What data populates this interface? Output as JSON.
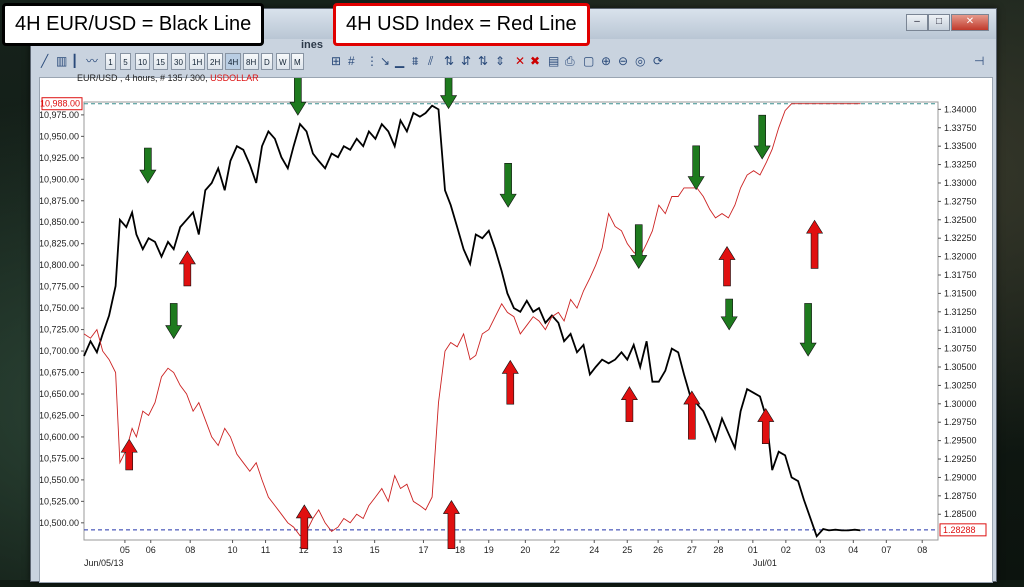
{
  "annotations": {
    "left_box": "4H EUR/USD = Black Line",
    "right_box": "4H USD Index = Red Line"
  },
  "window": {
    "title_fragment": "ines",
    "caption_symbol": "EUR/USD , 4 hours, # 135 / 300,",
    "caption_indicator": "USDOLLAR"
  },
  "toolbar": {
    "timeframes": [
      "1",
      "5",
      "10",
      "15",
      "30",
      "1H",
      "2H",
      "4H",
      "8H",
      "D",
      "W",
      "M"
    ],
    "selected_timeframe": "4H"
  },
  "chart_data": {
    "type": "line",
    "x_ticks": [
      {
        "label": "05",
        "pos": 0.057
      },
      {
        "label": "06",
        "pos": 0.093
      },
      {
        "label": "08",
        "pos": 0.148
      },
      {
        "label": "10",
        "pos": 0.207
      },
      {
        "label": "11",
        "pos": 0.253
      },
      {
        "label": "12",
        "pos": 0.306
      },
      {
        "label": "13",
        "pos": 0.353
      },
      {
        "label": "15",
        "pos": 0.405
      },
      {
        "label": "17",
        "pos": 0.473
      },
      {
        "label": "18",
        "pos": 0.524
      },
      {
        "label": "19",
        "pos": 0.564
      },
      {
        "label": "20",
        "pos": 0.615
      },
      {
        "label": "22",
        "pos": 0.656
      },
      {
        "label": "24",
        "pos": 0.711
      },
      {
        "label": "25",
        "pos": 0.757
      },
      {
        "label": "26",
        "pos": 0.8
      },
      {
        "label": "27",
        "pos": 0.847
      },
      {
        "label": "28",
        "pos": 0.884
      },
      {
        "label": "01",
        "pos": 0.932
      },
      {
        "label": "02",
        "pos": 0.978
      },
      {
        "label": "03",
        "pos": 1.026
      },
      {
        "label": "04",
        "pos": 1.072
      },
      {
        "label": "07",
        "pos": 1.118
      },
      {
        "label": "08",
        "pos": 1.168
      }
    ],
    "x_sub_labels": [
      {
        "label": "Jun/05/13",
        "pos": 0.0
      },
      {
        "label": "Jul/01",
        "pos": 0.932
      }
    ],
    "left_axis": {
      "ylim": [
        10480,
        10990
      ],
      "ticks": [
        10500,
        10525,
        10550,
        10575,
        10600,
        10625,
        10650,
        10675,
        10700,
        10725,
        10750,
        10775,
        10800,
        10825,
        10850,
        10875,
        10900,
        10925,
        10950,
        10975
      ],
      "tick_labels": [
        "10,500.00",
        "10,525.00",
        "10,550.00",
        "10,575.00",
        "10,600.00",
        "10,625.00",
        "10,650.00",
        "10,675.00",
        "10,700.00",
        "10,725.00",
        "10,750.00",
        "10,775.00",
        "10,800.00",
        "10,825.00",
        "10,850.00",
        "10,875.00",
        "10,900.00",
        "10,925.00",
        "10,950.00",
        "10,975.00"
      ],
      "marker": {
        "value": 10988,
        "label": "10,988.00"
      }
    },
    "right_axis": {
      "ylim": [
        1.2815,
        1.341
      ],
      "ticks": [
        1.285,
        1.2875,
        1.29,
        1.2925,
        1.295,
        1.2975,
        1.3,
        1.3025,
        1.305,
        1.3075,
        1.31,
        1.3125,
        1.315,
        1.3175,
        1.32,
        1.3225,
        1.325,
        1.3275,
        1.33,
        1.3325,
        1.335,
        1.3375,
        1.34
      ],
      "tick_labels": [
        "1.28500",
        "1.28750",
        "1.29000",
        "1.29250",
        "1.29500",
        "1.29750",
        "1.30000",
        "1.30250",
        "1.30500",
        "1.30750",
        "1.31000",
        "1.31250",
        "1.31500",
        "1.31750",
        "1.32000",
        "1.32250",
        "1.32500",
        "1.32750",
        "1.33000",
        "1.33250",
        "1.33500",
        "1.33750",
        "1.34000"
      ],
      "marker": {
        "value": 1.28288,
        "label": "1.28288"
      }
    },
    "series": [
      {
        "name": "4H EUR/USD",
        "color": "#000000",
        "axis": "right",
        "x": [
          0.0,
          0.009,
          0.018,
          0.026,
          0.035,
          0.044,
          0.05,
          0.059,
          0.067,
          0.073,
          0.082,
          0.09,
          0.099,
          0.108,
          0.117,
          0.125,
          0.134,
          0.143,
          0.152,
          0.16,
          0.169,
          0.178,
          0.187,
          0.196,
          0.204,
          0.213,
          0.222,
          0.231,
          0.24,
          0.248,
          0.257,
          0.266,
          0.275,
          0.284,
          0.292,
          0.301,
          0.31,
          0.319,
          0.327,
          0.336,
          0.345,
          0.354,
          0.362,
          0.371,
          0.38,
          0.389,
          0.397,
          0.406,
          0.415,
          0.424,
          0.433,
          0.441,
          0.45,
          0.459,
          0.468,
          0.476,
          0.485,
          0.494,
          0.503,
          0.511,
          0.52,
          0.529,
          0.538,
          0.546,
          0.555,
          0.564,
          0.573,
          0.582,
          0.59,
          0.599,
          0.608,
          0.617,
          0.626,
          0.634,
          0.643,
          0.652,
          0.661,
          0.669,
          0.678,
          0.687,
          0.696,
          0.705,
          0.713,
          0.722,
          0.731,
          0.74,
          0.749,
          0.757,
          0.766,
          0.775,
          0.784,
          0.792,
          0.801,
          0.81,
          0.819,
          0.828,
          0.836,
          0.845,
          0.854,
          0.863,
          0.872,
          0.88,
          0.889,
          0.898,
          0.907,
          0.915,
          0.924,
          0.933,
          0.942,
          0.951,
          0.959,
          0.968,
          0.977,
          0.986,
          0.995,
          1.003,
          1.012,
          1.021,
          1.03,
          1.038,
          1.047,
          1.056,
          1.065,
          1.074,
          1.082
        ],
        "values": [
          1.3065,
          1.3085,
          1.307,
          1.3095,
          1.312,
          1.316,
          1.325,
          1.324,
          1.326,
          1.323,
          1.321,
          1.3225,
          1.322,
          1.32,
          1.322,
          1.321,
          1.324,
          1.325,
          1.326,
          1.323,
          1.329,
          1.33,
          1.332,
          1.329,
          1.333,
          1.335,
          1.3345,
          1.3325,
          1.33,
          1.335,
          1.337,
          1.336,
          1.3335,
          1.332,
          1.335,
          1.338,
          1.337,
          1.334,
          1.333,
          1.332,
          1.334,
          1.3335,
          1.335,
          1.3345,
          1.336,
          1.335,
          1.337,
          1.336,
          1.338,
          1.337,
          1.335,
          1.3385,
          1.337,
          1.3395,
          1.339,
          1.3395,
          1.3405,
          1.34,
          1.329,
          1.327,
          1.324,
          1.321,
          1.319,
          1.323,
          1.3225,
          1.3235,
          1.321,
          1.318,
          1.315,
          1.313,
          1.3125,
          1.314,
          1.3125,
          1.313,
          1.311,
          1.312,
          1.311,
          1.3085,
          1.3095,
          1.307,
          1.308,
          1.304,
          1.305,
          1.306,
          1.3055,
          1.306,
          1.307,
          1.306,
          1.308,
          1.305,
          1.3085,
          1.303,
          1.303,
          1.3045,
          1.3075,
          1.307,
          1.304,
          1.301,
          1.3,
          1.299,
          1.297,
          1.295,
          1.298,
          1.296,
          1.294,
          1.299,
          1.302,
          1.3015,
          1.301,
          1.298,
          1.291,
          1.2935,
          1.293,
          1.29,
          1.2895,
          1.287,
          1.2845,
          1.282,
          1.283,
          1.2828,
          1.2829,
          1.2828,
          1.2828,
          1.2829,
          1.2828
        ]
      },
      {
        "name": "4H USD Index",
        "color": "#cc2222",
        "axis": "left",
        "x": [
          0.0,
          0.009,
          0.018,
          0.026,
          0.035,
          0.044,
          0.05,
          0.059,
          0.067,
          0.073,
          0.082,
          0.09,
          0.099,
          0.108,
          0.117,
          0.125,
          0.134,
          0.143,
          0.152,
          0.16,
          0.169,
          0.178,
          0.187,
          0.196,
          0.204,
          0.213,
          0.222,
          0.231,
          0.24,
          0.248,
          0.257,
          0.266,
          0.275,
          0.284,
          0.292,
          0.301,
          0.31,
          0.319,
          0.327,
          0.336,
          0.345,
          0.354,
          0.362,
          0.371,
          0.38,
          0.389,
          0.397,
          0.406,
          0.415,
          0.424,
          0.433,
          0.441,
          0.45,
          0.459,
          0.468,
          0.476,
          0.485,
          0.494,
          0.503,
          0.511,
          0.52,
          0.529,
          0.538,
          0.546,
          0.555,
          0.564,
          0.573,
          0.582,
          0.59,
          0.599,
          0.608,
          0.617,
          0.626,
          0.634,
          0.643,
          0.652,
          0.661,
          0.669,
          0.678,
          0.687,
          0.696,
          0.705,
          0.713,
          0.722,
          0.731,
          0.74,
          0.749,
          0.757,
          0.766,
          0.775,
          0.784,
          0.792,
          0.801,
          0.81,
          0.819,
          0.828,
          0.836,
          0.845,
          0.854,
          0.863,
          0.872,
          0.88,
          0.889,
          0.898,
          0.907,
          0.915,
          0.924,
          0.933,
          0.942,
          0.951,
          0.959,
          0.968,
          0.977,
          0.986,
          0.995,
          1.003,
          1.012,
          1.021,
          1.03,
          1.038,
          1.047,
          1.056,
          1.065,
          1.074,
          1.082
        ],
        "values": [
          10720,
          10715,
          10725,
          10700,
          10690,
          10675,
          10570,
          10585,
          10610,
          10600,
          10630,
          10625,
          10640,
          10670,
          10680,
          10675,
          10660,
          10650,
          10630,
          10640,
          10620,
          10600,
          10590,
          10610,
          10600,
          10580,
          10570,
          10560,
          10570,
          10550,
          10530,
          10520,
          10510,
          10500,
          10495,
          10485,
          10490,
          10505,
          10515,
          10500,
          10490,
          10495,
          10505,
          10500,
          10510,
          10505,
          10520,
          10530,
          10540,
          10525,
          10555,
          10540,
          10545,
          10525,
          10520,
          10515,
          10530,
          10640,
          10700,
          10710,
          10705,
          10720,
          10690,
          10695,
          10720,
          10725,
          10740,
          10755,
          10745,
          10740,
          10720,
          10730,
          10740,
          10735,
          10725,
          10740,
          10745,
          10735,
          10760,
          10750,
          10770,
          10785,
          10800,
          10820,
          10860,
          10845,
          10840,
          10825,
          10815,
          10810,
          10825,
          10840,
          10870,
          10860,
          10880,
          10880,
          10890,
          10890,
          10890,
          10880,
          10865,
          10855,
          10860,
          10855,
          10870,
          10890,
          10905,
          10910,
          10905,
          10920,
          10935,
          10960,
          10980,
          10988,
          10988,
          10988,
          10988,
          10988,
          10988,
          10988,
          10988,
          10988,
          10988,
          10988,
          10988
        ]
      }
    ],
    "grid": false
  },
  "arrows": {
    "green_down": [
      {
        "x": 0.089,
        "y_top": 0.105,
        "y_bottom": 0.185
      },
      {
        "x": 0.125,
        "y_top": 0.46,
        "y_bottom": 0.54
      },
      {
        "x": 0.298,
        "y_top": -0.08,
        "y_bottom": 0.03
      },
      {
        "x": 0.508,
        "y_top": -0.08,
        "y_bottom": 0.015
      },
      {
        "x": 0.591,
        "y_top": 0.14,
        "y_bottom": 0.24
      },
      {
        "x": 0.773,
        "y_top": 0.28,
        "y_bottom": 0.38
      },
      {
        "x": 0.853,
        "y_top": 0.1,
        "y_bottom": 0.2
      },
      {
        "x": 0.899,
        "y_top": 0.45,
        "y_bottom": 0.52
      },
      {
        "x": 0.945,
        "y_top": 0.03,
        "y_bottom": 0.13
      },
      {
        "x": 1.009,
        "y_top": 0.46,
        "y_bottom": 0.58
      }
    ],
    "red_up": [
      {
        "x": 0.063,
        "y_top": 0.77,
        "y_bottom": 0.84
      },
      {
        "x": 0.144,
        "y_top": 0.34,
        "y_bottom": 0.42
      },
      {
        "x": 0.307,
        "y_top": 0.92,
        "y_bottom": 1.02
      },
      {
        "x": 0.512,
        "y_top": 0.91,
        "y_bottom": 1.02
      },
      {
        "x": 0.594,
        "y_top": 0.59,
        "y_bottom": 0.69
      },
      {
        "x": 0.76,
        "y_top": 0.65,
        "y_bottom": 0.73
      },
      {
        "x": 0.847,
        "y_top": 0.66,
        "y_bottom": 0.77
      },
      {
        "x": 0.896,
        "y_top": 0.33,
        "y_bottom": 0.42
      },
      {
        "x": 0.95,
        "y_top": 0.7,
        "y_bottom": 0.78
      },
      {
        "x": 1.018,
        "y_top": 0.27,
        "y_bottom": 0.38
      }
    ]
  }
}
